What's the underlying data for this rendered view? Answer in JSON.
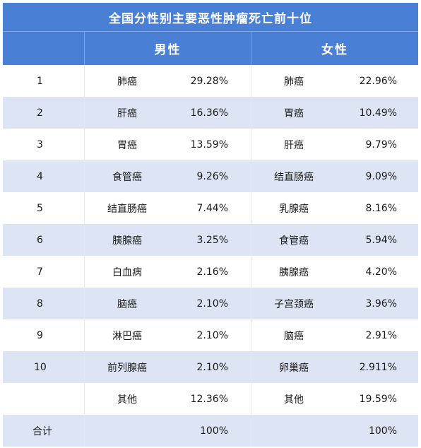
{
  "title": "全国分性别主要恶性肿瘤死亡前十位",
  "headers": {
    "male": "男性",
    "female": "女性"
  },
  "rows": [
    {
      "rank": "1",
      "male_name": "肺癌",
      "male_pct": "29.28%",
      "female_name": "肺癌",
      "female_pct": "22.96%"
    },
    {
      "rank": "2",
      "male_name": "肝癌",
      "male_pct": "16.36%",
      "female_name": "胃癌",
      "female_pct": "10.49%"
    },
    {
      "rank": "3",
      "male_name": "胃癌",
      "male_pct": "13.59%",
      "female_name": "肝癌",
      "female_pct": "9.79%"
    },
    {
      "rank": "4",
      "male_name": "食管癌",
      "male_pct": "9.26%",
      "female_name": "结直肠癌",
      "female_pct": "9.09%"
    },
    {
      "rank": "5",
      "male_name": "结直肠癌",
      "male_pct": "7.44%",
      "female_name": "乳腺癌",
      "female_pct": "8.16%"
    },
    {
      "rank": "6",
      "male_name": "胰腺癌",
      "male_pct": "3.25%",
      "female_name": "食管癌",
      "female_pct": "5.94%"
    },
    {
      "rank": "7",
      "male_name": "白血病",
      "male_pct": "2.16%",
      "female_name": "胰腺癌",
      "female_pct": "4.20%"
    },
    {
      "rank": "8",
      "male_name": "脑癌",
      "male_pct": "2.10%",
      "female_name": "子宫颈癌",
      "female_pct": "3.96%"
    },
    {
      "rank": "9",
      "male_name": "淋巴癌",
      "male_pct": "2.10%",
      "female_name": "脑癌",
      "female_pct": "2.91%"
    },
    {
      "rank": "10",
      "male_name": "前列腺癌",
      "male_pct": "2.10%",
      "female_name": "卵巢癌",
      "female_pct": "2.911%"
    },
    {
      "rank": "",
      "male_name": "其他",
      "male_pct": "12.36%",
      "female_name": "其他",
      "female_pct": "19.59%"
    },
    {
      "rank": "合计",
      "male_name": "",
      "male_pct": "100%",
      "female_name": "",
      "female_pct": "100%"
    }
  ]
}
